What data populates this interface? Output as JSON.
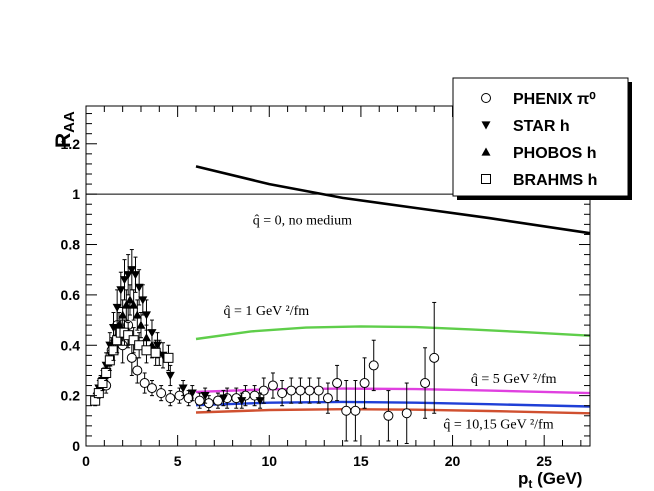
{
  "chart_data": {
    "type": "scatter",
    "xlim": [
      0,
      27.5
    ],
    "ylim": [
      0,
      1.35
    ],
    "xticks": [
      0,
      5,
      10,
      15,
      20,
      25
    ],
    "yticks": [
      0,
      0.2,
      0.4,
      0.6,
      0.8,
      1,
      1.2
    ],
    "xlabel": {
      "main": "p",
      "sub": "t",
      "rest": " (GeV)"
    },
    "ylabel": {
      "main": "R",
      "sub": "AA"
    },
    "reference_line": 1,
    "legend": {
      "placement": "top-right",
      "entries": [
        {
          "marker": "open-circle",
          "text": "PHENIX π⁰"
        },
        {
          "marker": "down-triangle",
          "text": "STAR h"
        },
        {
          "marker": "up-triangle",
          "text": "PHOBOS h"
        },
        {
          "marker": "open-square",
          "text": "BRAHMS h"
        }
      ]
    },
    "curves": [
      {
        "color": "#000000",
        "x": [
          6,
          10,
          14,
          18,
          22,
          27.5
        ],
        "y": [
          1.11,
          1.04,
          0.985,
          0.945,
          0.905,
          0.845
        ],
        "label": "q̂ = 0, no medium",
        "label_at": [
          9.1,
          0.88
        ]
      },
      {
        "color": "#5fce4a",
        "x": [
          6,
          9,
          12,
          15,
          18,
          21,
          24,
          27.5
        ],
        "y": [
          0.425,
          0.455,
          0.47,
          0.475,
          0.472,
          0.463,
          0.452,
          0.438
        ],
        "label": "q̂ = 1 GeV ²/fm",
        "label_at": [
          7.5,
          0.52
        ]
      },
      {
        "color": "#e040e0",
        "x": [
          6,
          10,
          14,
          18,
          22,
          27.5
        ],
        "y": [
          0.215,
          0.225,
          0.228,
          0.226,
          0.22,
          0.21
        ],
        "label": "q̂ = 5 GeV ²/fm",
        "label_at": [
          21,
          0.25
        ]
      },
      {
        "color": "#1f3fd6",
        "x": [
          6,
          10,
          14,
          18,
          22,
          27.5
        ],
        "y": [
          0.162,
          0.172,
          0.175,
          0.172,
          0.166,
          0.157
        ],
        "label": "",
        "label_at": null
      },
      {
        "color": "#d05030",
        "x": [
          6,
          10,
          14,
          18,
          22,
          27.5
        ],
        "y": [
          0.133,
          0.143,
          0.146,
          0.144,
          0.139,
          0.13
        ],
        "label": "q̂ = 10,15 GeV ²/fm",
        "label_at": [
          19.5,
          0.07
        ]
      }
    ],
    "series": [
      {
        "name": "PHENIX π⁰",
        "marker": "open-circle",
        "points": [
          [
            1.1,
            0.24,
            0.03
          ],
          [
            1.4,
            0.38,
            0.05
          ],
          [
            1.7,
            0.48,
            0.07
          ],
          [
            2.0,
            0.4,
            0.07
          ],
          [
            2.3,
            0.48,
            0.08
          ],
          [
            2.5,
            0.35,
            0.07
          ],
          [
            2.8,
            0.3,
            0.05
          ],
          [
            3.2,
            0.25,
            0.04
          ],
          [
            3.6,
            0.23,
            0.03
          ],
          [
            4.1,
            0.21,
            0.03
          ],
          [
            4.6,
            0.19,
            0.03
          ],
          [
            5.1,
            0.2,
            0.03
          ],
          [
            5.6,
            0.19,
            0.03
          ],
          [
            6.2,
            0.18,
            0.03
          ],
          [
            6.7,
            0.17,
            0.03
          ],
          [
            7.2,
            0.18,
            0.03
          ],
          [
            7.7,
            0.19,
            0.04
          ],
          [
            8.2,
            0.19,
            0.04
          ],
          [
            8.7,
            0.2,
            0.04
          ],
          [
            9.2,
            0.2,
            0.04
          ],
          [
            9.7,
            0.22,
            0.05
          ],
          [
            10.2,
            0.24,
            0.05
          ],
          [
            10.7,
            0.21,
            0.05
          ],
          [
            11.2,
            0.22,
            0.05
          ],
          [
            11.7,
            0.22,
            0.05
          ],
          [
            12.2,
            0.22,
            0.05
          ],
          [
            12.7,
            0.22,
            0.05
          ],
          [
            13.2,
            0.19,
            0.06
          ],
          [
            13.7,
            0.25,
            0.07
          ],
          [
            14.2,
            0.14,
            0.12
          ],
          [
            14.7,
            0.14,
            0.12
          ],
          [
            15.2,
            0.25,
            0.1
          ],
          [
            15.7,
            0.32,
            0.1
          ],
          [
            16.5,
            0.12,
            0.1
          ],
          [
            17.5,
            0.13,
            0.12
          ],
          [
            18.5,
            0.25,
            0.14
          ],
          [
            19.0,
            0.35,
            0.22
          ]
        ]
      },
      {
        "name": "STAR h",
        "marker": "down-triangle",
        "points": [
          [
            0.7,
            0.23,
            0.03
          ],
          [
            0.9,
            0.26,
            0.04
          ],
          [
            1.1,
            0.32,
            0.05
          ],
          [
            1.3,
            0.4,
            0.05
          ],
          [
            1.5,
            0.47,
            0.06
          ],
          [
            1.7,
            0.55,
            0.07
          ],
          [
            1.9,
            0.62,
            0.07
          ],
          [
            2.1,
            0.66,
            0.08
          ],
          [
            2.3,
            0.68,
            0.08
          ],
          [
            2.5,
            0.7,
            0.08
          ],
          [
            2.7,
            0.68,
            0.07
          ],
          [
            2.9,
            0.63,
            0.07
          ],
          [
            3.1,
            0.58,
            0.06
          ],
          [
            3.3,
            0.52,
            0.06
          ],
          [
            3.6,
            0.45,
            0.05
          ],
          [
            3.9,
            0.4,
            0.05
          ],
          [
            4.2,
            0.36,
            0.05
          ],
          [
            4.6,
            0.28,
            0.04
          ],
          [
            5.3,
            0.23,
            0.03
          ],
          [
            5.8,
            0.21,
            0.03
          ],
          [
            6.5,
            0.2,
            0.03
          ],
          [
            7.5,
            0.19,
            0.03
          ],
          [
            8.5,
            0.18,
            0.03
          ],
          [
            9.5,
            0.18,
            0.03
          ]
        ]
      },
      {
        "name": "PHOBOS h",
        "marker": "up-triangle",
        "points": [
          [
            0.6,
            0.22,
            0.02
          ],
          [
            0.8,
            0.25,
            0.03
          ],
          [
            1.0,
            0.28,
            0.03
          ],
          [
            1.2,
            0.33,
            0.04
          ],
          [
            1.4,
            0.38,
            0.04
          ],
          [
            1.6,
            0.43,
            0.05
          ],
          [
            1.8,
            0.48,
            0.05
          ],
          [
            2.0,
            0.52,
            0.06
          ],
          [
            2.2,
            0.56,
            0.06
          ],
          [
            2.4,
            0.58,
            0.06
          ],
          [
            2.6,
            0.56,
            0.06
          ],
          [
            2.8,
            0.52,
            0.06
          ],
          [
            3.0,
            0.48,
            0.05
          ],
          [
            3.3,
            0.43,
            0.05
          ],
          [
            3.6,
            0.4,
            0.05
          ],
          [
            4.0,
            0.37,
            0.05
          ]
        ]
      },
      {
        "name": "BRAHMS h",
        "marker": "open-square",
        "points": [
          [
            0.5,
            0.18,
            0.02
          ],
          [
            0.7,
            0.21,
            0.02
          ],
          [
            0.9,
            0.25,
            0.03
          ],
          [
            1.1,
            0.29,
            0.03
          ],
          [
            1.3,
            0.34,
            0.04
          ],
          [
            1.5,
            0.38,
            0.04
          ],
          [
            1.7,
            0.42,
            0.05
          ],
          [
            1.9,
            0.45,
            0.05
          ],
          [
            2.1,
            0.45,
            0.05
          ],
          [
            2.3,
            0.44,
            0.05
          ],
          [
            2.6,
            0.42,
            0.05
          ],
          [
            2.9,
            0.4,
            0.05
          ],
          [
            3.3,
            0.38,
            0.05
          ],
          [
            3.8,
            0.37,
            0.05
          ],
          [
            4.5,
            0.35,
            0.05
          ]
        ]
      }
    ]
  }
}
